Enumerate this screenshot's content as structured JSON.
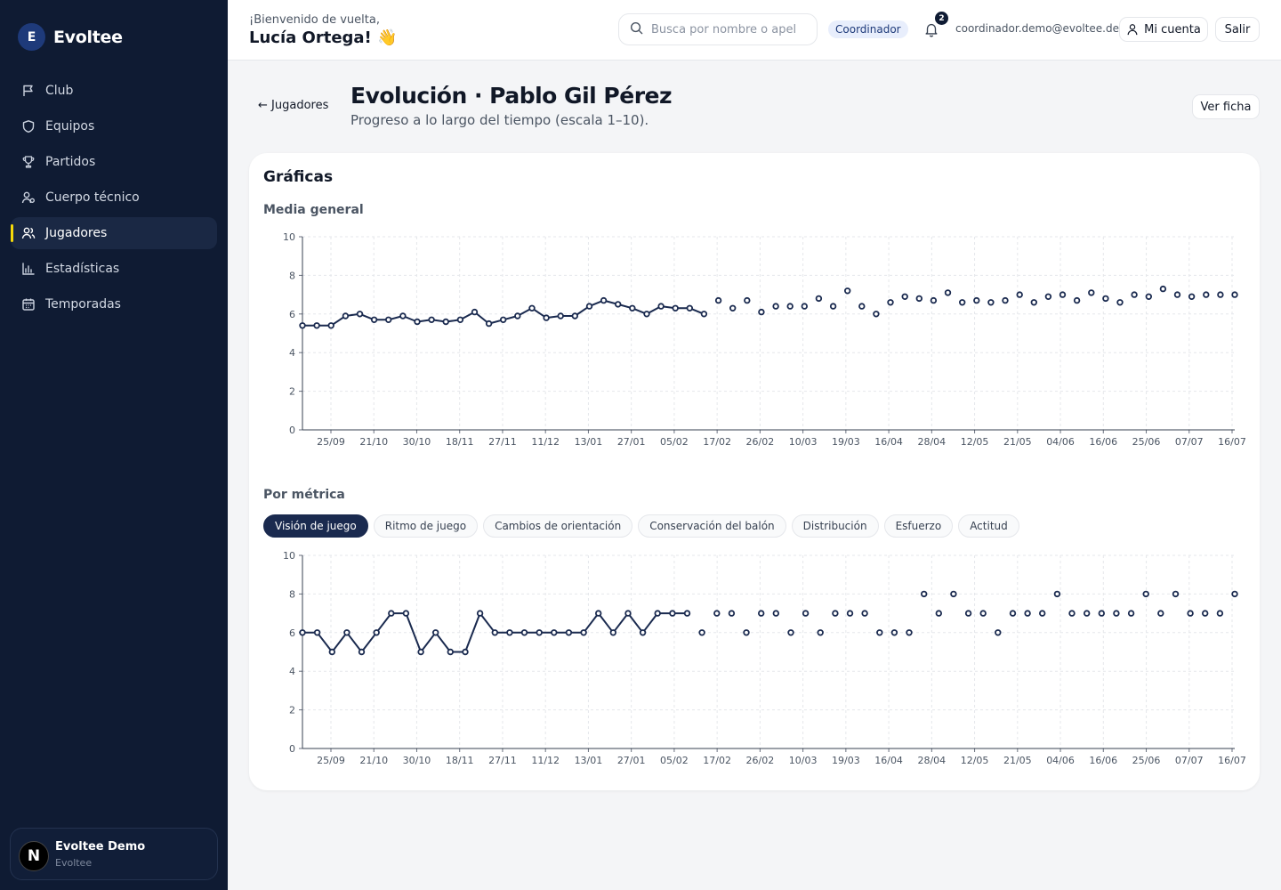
{
  "brand": {
    "initial": "E",
    "name": "Evoltee"
  },
  "nav": [
    {
      "label": "Club",
      "icon": "flag-icon"
    },
    {
      "label": "Equipos",
      "icon": "shield-icon"
    },
    {
      "label": "Partidos",
      "icon": "trophy-icon"
    },
    {
      "label": "Cuerpo técnico",
      "icon": "coach-icon"
    },
    {
      "label": "Jugadores",
      "icon": "users-icon",
      "active": true
    },
    {
      "label": "Estadísticas",
      "icon": "bar-chart-icon"
    },
    {
      "label": "Temporadas",
      "icon": "calendar-icon"
    }
  ],
  "account": {
    "name": "Evoltee Demo",
    "sub": "Evoltee",
    "badge": "N"
  },
  "header": {
    "greeting": "¡Bienvenido de vuelta,",
    "user": "Lucía Ortega! 👋",
    "search_placeholder": "Busca por nombre o apel",
    "role": "Coordinador",
    "notifications": "2",
    "email": "coordinador.demo@evoltee.dev",
    "account_button": "Mi cuenta",
    "logout_button": "Salir"
  },
  "page": {
    "back": "← Jugadores",
    "title": "Evolución · Pablo Gil Pérez",
    "subtitle": "Progreso a lo largo del tiempo (escala 1–10).",
    "view_button": "Ver ficha"
  },
  "card": {
    "title": "Gráficas",
    "general_label": "Media general",
    "metric_label": "Por métrica"
  },
  "metrics": [
    {
      "label": "Visión de juego",
      "active": true
    },
    {
      "label": "Ritmo de juego"
    },
    {
      "label": "Cambios de orientación"
    },
    {
      "label": "Conservación del balón"
    },
    {
      "label": "Distribución"
    },
    {
      "label": "Esfuerzo"
    },
    {
      "label": "Actitud"
    }
  ],
  "chart_data": [
    {
      "type": "line",
      "title": "Media general",
      "ylim": [
        0,
        10
      ],
      "yticks": [
        0,
        2,
        4,
        6,
        8,
        10
      ],
      "xticks": [
        "25/09",
        "21/10",
        "30/10",
        "18/11",
        "27/11",
        "11/12",
        "13/01",
        "27/01",
        "05/02",
        "17/02",
        "26/02",
        "10/03",
        "19/03",
        "16/04",
        "28/04",
        "12/05",
        "21/05",
        "04/06",
        "16/06",
        "25/06",
        "07/07",
        "16/07"
      ],
      "grid": true,
      "series": [
        {
          "values": [
            5.4,
            5.4,
            5.4,
            5.9,
            6.0,
            5.7,
            5.7,
            5.9,
            5.6,
            5.7,
            5.6,
            5.7,
            6.1,
            5.5,
            5.7,
            5.9,
            6.3,
            5.8,
            5.9,
            5.9,
            6.4,
            6.7,
            6.5,
            6.3,
            6.0,
            6.4,
            6.3,
            6.3,
            6.0
          ],
          "connected": true
        },
        {
          "values": [
            6.7,
            6.3,
            6.7,
            6.1,
            6.4,
            6.4,
            6.4,
            6.8,
            6.4,
            7.2,
            6.4,
            6.0,
            6.6,
            6.9,
            6.8,
            6.7,
            7.1,
            6.6,
            6.7,
            6.6,
            6.7,
            7.0,
            6.6,
            6.9,
            7.0,
            6.7,
            7.1,
            6.8,
            6.6,
            7.0,
            6.9,
            7.3,
            7.0,
            6.9,
            7.0,
            7.0,
            7.0
          ],
          "connected": false
        }
      ]
    },
    {
      "type": "line",
      "title": "Visión de juego",
      "ylim": [
        0,
        10
      ],
      "yticks": [
        0,
        2,
        4,
        6,
        8,
        10
      ],
      "xticks": [
        "25/09",
        "21/10",
        "30/10",
        "18/11",
        "27/11",
        "11/12",
        "13/01",
        "27/01",
        "05/02",
        "17/02",
        "26/02",
        "10/03",
        "19/03",
        "16/04",
        "28/04",
        "12/05",
        "21/05",
        "04/06",
        "16/06",
        "25/06",
        "07/07",
        "16/07"
      ],
      "grid": true,
      "series": [
        {
          "values": [
            6,
            6,
            5,
            6,
            5,
            6,
            7,
            7,
            5,
            6,
            5,
            5,
            7,
            6,
            6,
            6,
            6,
            6,
            6,
            6,
            7,
            6,
            7,
            6,
            7,
            7,
            7
          ],
          "connected": true
        },
        {
          "values": [
            6,
            7,
            7,
            6,
            7,
            7,
            6,
            7,
            6,
            7,
            7,
            7,
            6,
            6,
            6,
            8,
            7,
            8,
            7,
            7,
            6,
            7,
            7,
            7,
            8,
            7,
            7,
            7,
            7,
            7,
            8,
            7,
            8,
            7,
            7,
            7,
            8
          ],
          "connected": false
        }
      ]
    }
  ]
}
